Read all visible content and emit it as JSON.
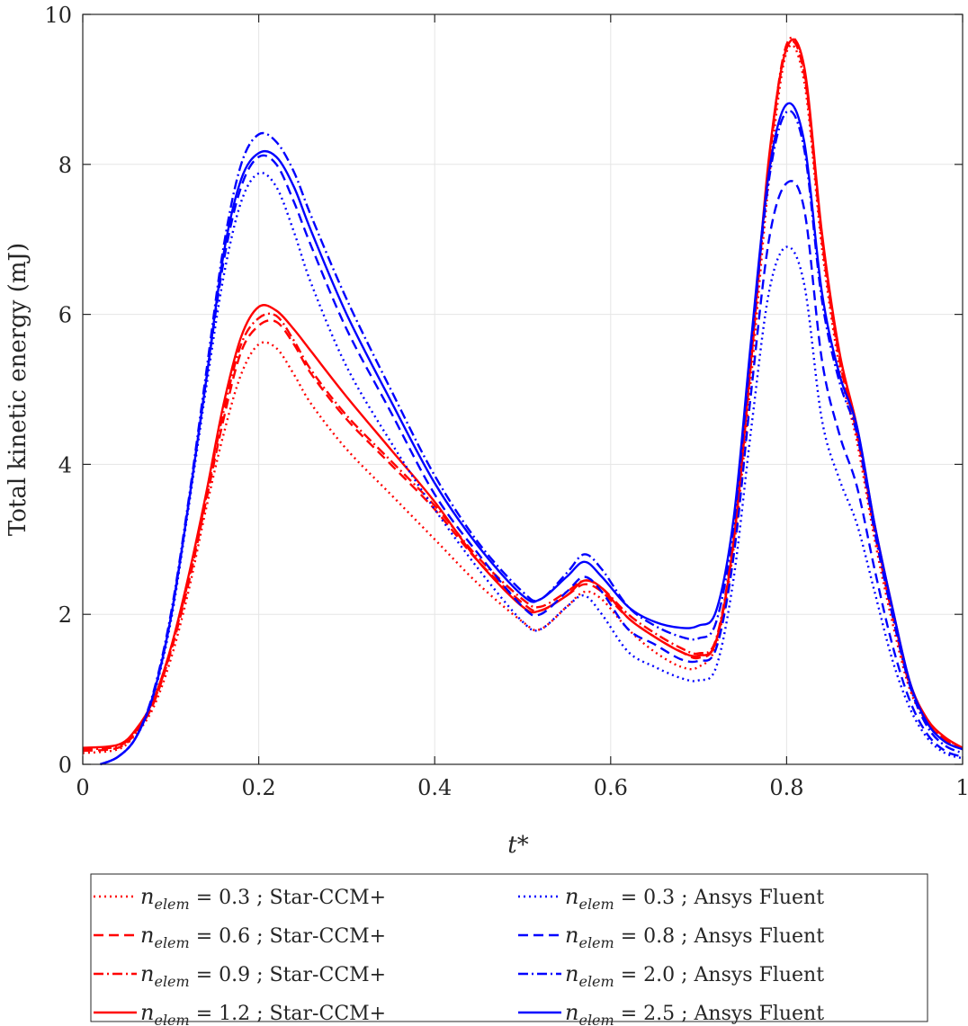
{
  "chart_data": {
    "type": "line",
    "title": "",
    "xlabel": "t*",
    "ylabel": "Total kinetic energy (mJ)",
    "xlim": [
      0,
      1
    ],
    "ylim": [
      0,
      10
    ],
    "xticks": [
      0,
      0.2,
      0.4,
      0.6,
      0.8,
      1
    ],
    "xtick_labels": [
      "0",
      "0.2",
      "0.4",
      "0.6",
      "0.8",
      "1"
    ],
    "yticks": [
      0,
      2,
      4,
      6,
      8,
      10
    ],
    "ytick_labels": [
      "0",
      "2",
      "4",
      "6",
      "8",
      "10"
    ],
    "grid": true,
    "legend_position": "below",
    "series": [
      {
        "name": "n_elem = 0.3 ; Star-CCM+",
        "label_main": "n",
        "label_sub": "elem",
        "label_rest": " = 0.3 ; Star-CCM+",
        "color": "#ff0000",
        "dash": "dotted",
        "x": [
          0.0,
          0.04,
          0.06,
          0.08,
          0.1,
          0.12,
          0.14,
          0.16,
          0.18,
          0.2,
          0.22,
          0.24,
          0.26,
          0.3,
          0.35,
          0.4,
          0.45,
          0.5,
          0.52,
          0.55,
          0.57,
          0.59,
          0.62,
          0.65,
          0.68,
          0.7,
          0.72,
          0.74,
          0.76,
          0.78,
          0.8,
          0.82,
          0.84,
          0.86,
          0.88,
          0.9,
          0.92,
          0.94,
          0.96,
          0.98,
          1.0
        ],
        "y": [
          0.15,
          0.2,
          0.4,
          0.75,
          1.4,
          2.3,
          3.4,
          4.4,
          5.2,
          5.6,
          5.55,
          5.2,
          4.8,
          4.2,
          3.6,
          3.0,
          2.4,
          1.9,
          1.8,
          2.1,
          2.3,
          2.2,
          1.8,
          1.5,
          1.3,
          1.3,
          1.6,
          2.9,
          5.2,
          7.8,
          9.5,
          9.1,
          6.9,
          5.3,
          4.3,
          3.0,
          1.9,
          1.0,
          0.55,
          0.32,
          0.2
        ]
      },
      {
        "name": "n_elem = 0.6 ; Star-CCM+",
        "label_main": "n",
        "label_sub": "elem",
        "label_rest": " = 0.6 ; Star-CCM+",
        "color": "#ff0000",
        "dash": "dashed",
        "x": [
          0.0,
          0.04,
          0.06,
          0.08,
          0.1,
          0.12,
          0.14,
          0.16,
          0.18,
          0.2,
          0.22,
          0.24,
          0.26,
          0.3,
          0.35,
          0.4,
          0.45,
          0.5,
          0.52,
          0.55,
          0.57,
          0.59,
          0.62,
          0.65,
          0.68,
          0.7,
          0.72,
          0.74,
          0.76,
          0.78,
          0.8,
          0.82,
          0.84,
          0.86,
          0.88,
          0.9,
          0.92,
          0.94,
          0.96,
          0.98,
          1.0
        ],
        "y": [
          0.18,
          0.22,
          0.42,
          0.8,
          1.5,
          2.4,
          3.5,
          4.6,
          5.5,
          5.85,
          5.9,
          5.6,
          5.2,
          4.6,
          4.0,
          3.4,
          2.7,
          2.15,
          2.05,
          2.25,
          2.4,
          2.3,
          1.95,
          1.7,
          1.5,
          1.42,
          1.65,
          3.0,
          5.4,
          8.0,
          9.55,
          9.2,
          7.0,
          5.4,
          4.4,
          3.1,
          2.0,
          1.05,
          0.55,
          0.33,
          0.2
        ]
      },
      {
        "name": "n_elem = 0.9 ; Star-CCM+",
        "label_main": "n",
        "label_sub": "elem",
        "label_rest": " = 0.9 ; Star-CCM+",
        "color": "#ff0000",
        "dash": "dashdot",
        "x": [
          0.0,
          0.04,
          0.06,
          0.08,
          0.1,
          0.12,
          0.14,
          0.16,
          0.18,
          0.2,
          0.22,
          0.24,
          0.26,
          0.3,
          0.35,
          0.4,
          0.45,
          0.5,
          0.52,
          0.55,
          0.57,
          0.59,
          0.62,
          0.65,
          0.68,
          0.7,
          0.72,
          0.74,
          0.76,
          0.78,
          0.8,
          0.82,
          0.84,
          0.86,
          0.88,
          0.9,
          0.92,
          0.94,
          0.96,
          0.98,
          1.0
        ],
        "y": [
          0.2,
          0.24,
          0.44,
          0.82,
          1.52,
          2.45,
          3.55,
          4.7,
          5.6,
          5.95,
          5.98,
          5.65,
          5.25,
          4.65,
          4.05,
          3.45,
          2.75,
          2.2,
          2.1,
          2.3,
          2.45,
          2.35,
          2.0,
          1.75,
          1.55,
          1.48,
          1.68,
          3.05,
          5.45,
          8.05,
          9.6,
          9.25,
          7.05,
          5.45,
          4.45,
          3.15,
          2.05,
          1.08,
          0.58,
          0.35,
          0.22
        ]
      },
      {
        "name": "n_elem = 1.2 ; Star-CCM+",
        "label_main": "n",
        "label_sub": "elem",
        "label_rest": " = 1.2 ; Star-CCM+",
        "color": "#ff0000",
        "dash": "solid",
        "x": [
          0.0,
          0.04,
          0.06,
          0.08,
          0.1,
          0.12,
          0.14,
          0.16,
          0.18,
          0.2,
          0.22,
          0.24,
          0.26,
          0.3,
          0.35,
          0.4,
          0.45,
          0.5,
          0.52,
          0.55,
          0.57,
          0.59,
          0.62,
          0.65,
          0.68,
          0.7,
          0.72,
          0.74,
          0.76,
          0.78,
          0.8,
          0.82,
          0.84,
          0.86,
          0.88,
          0.9,
          0.92,
          0.94,
          0.96,
          0.98,
          1.0
        ],
        "y": [
          0.22,
          0.26,
          0.46,
          0.85,
          1.55,
          2.5,
          3.6,
          4.8,
          5.7,
          6.1,
          6.05,
          5.8,
          5.5,
          4.9,
          4.2,
          3.5,
          2.7,
          2.1,
          2.05,
          2.25,
          2.45,
          2.35,
          1.95,
          1.7,
          1.5,
          1.45,
          1.65,
          3.0,
          5.45,
          8.1,
          9.55,
          9.3,
          7.1,
          5.5,
          4.5,
          3.2,
          2.1,
          1.1,
          0.6,
          0.36,
          0.22
        ]
      },
      {
        "name": "n_elem = 0.3 ; Ansys Fluent",
        "label_main": "n",
        "label_sub": "elem",
        "label_rest": " = 0.3 ; Ansys Fluent",
        "color": "#0000ff",
        "dash": "dotted",
        "x": [
          0.02,
          0.04,
          0.06,
          0.08,
          0.1,
          0.12,
          0.14,
          0.16,
          0.18,
          0.2,
          0.22,
          0.24,
          0.26,
          0.3,
          0.35,
          0.4,
          0.45,
          0.5,
          0.52,
          0.55,
          0.57,
          0.59,
          0.62,
          0.65,
          0.68,
          0.7,
          0.72,
          0.74,
          0.76,
          0.78,
          0.8,
          0.82,
          0.84,
          0.86,
          0.88,
          0.9,
          0.92,
          0.94,
          0.96,
          0.98,
          1.0
        ],
        "y": [
          0.0,
          0.1,
          0.35,
          0.9,
          1.9,
          3.4,
          5.0,
          6.5,
          7.5,
          7.88,
          7.7,
          7.1,
          6.4,
          5.3,
          4.3,
          3.4,
          2.6,
          1.9,
          1.8,
          2.1,
          2.25,
          2.0,
          1.5,
          1.3,
          1.15,
          1.12,
          1.3,
          2.5,
          4.5,
          6.3,
          6.9,
          6.4,
          4.6,
          3.8,
          3.2,
          2.3,
          1.4,
          0.75,
          0.35,
          0.15,
          0.08
        ]
      },
      {
        "name": "n_elem = 0.8 ; Ansys Fluent",
        "label_main": "n",
        "label_sub": "elem",
        "label_rest": " = 0.8 ; Ansys Fluent",
        "color": "#0000ff",
        "dash": "dashed",
        "x": [
          0.02,
          0.04,
          0.06,
          0.08,
          0.1,
          0.12,
          0.14,
          0.16,
          0.18,
          0.2,
          0.22,
          0.24,
          0.26,
          0.3,
          0.35,
          0.4,
          0.45,
          0.5,
          0.52,
          0.55,
          0.57,
          0.59,
          0.62,
          0.65,
          0.68,
          0.7,
          0.72,
          0.74,
          0.76,
          0.78,
          0.8,
          0.82,
          0.84,
          0.86,
          0.88,
          0.9,
          0.92,
          0.94,
          0.96,
          0.98,
          1.0
        ],
        "y": [
          0.0,
          0.1,
          0.35,
          0.92,
          1.95,
          3.45,
          5.1,
          6.7,
          7.7,
          8.1,
          8.0,
          7.5,
          6.9,
          5.8,
          4.7,
          3.6,
          2.8,
          2.1,
          2.0,
          2.3,
          2.5,
          2.3,
          1.8,
          1.6,
          1.4,
          1.38,
          1.55,
          2.8,
          5.0,
          7.0,
          7.75,
          7.4,
          5.4,
          4.4,
          3.7,
          2.6,
          1.6,
          0.85,
          0.4,
          0.18,
          0.1
        ]
      },
      {
        "name": "n_elem = 2.0 ; Ansys Fluent",
        "label_main": "n",
        "label_sub": "elem",
        "label_rest": " = 2.0 ; Ansys Fluent",
        "color": "#0000ff",
        "dash": "dashdot",
        "x": [
          0.02,
          0.04,
          0.06,
          0.08,
          0.1,
          0.12,
          0.14,
          0.16,
          0.18,
          0.2,
          0.22,
          0.24,
          0.26,
          0.3,
          0.35,
          0.4,
          0.45,
          0.5,
          0.52,
          0.55,
          0.57,
          0.59,
          0.62,
          0.65,
          0.68,
          0.7,
          0.72,
          0.74,
          0.76,
          0.78,
          0.8,
          0.82,
          0.84,
          0.86,
          0.88,
          0.9,
          0.92,
          0.94,
          0.96,
          0.98,
          1.0
        ],
        "y": [
          0.0,
          0.1,
          0.35,
          0.95,
          2.0,
          3.5,
          5.2,
          6.9,
          8.0,
          8.4,
          8.3,
          7.9,
          7.3,
          6.2,
          5.0,
          3.85,
          2.95,
          2.3,
          2.2,
          2.55,
          2.8,
          2.6,
          2.1,
          1.85,
          1.7,
          1.68,
          1.9,
          3.2,
          5.6,
          7.8,
          8.7,
          8.2,
          6.2,
          5.1,
          4.4,
          3.1,
          2.0,
          1.05,
          0.5,
          0.25,
          0.15
        ]
      },
      {
        "name": "n_elem = 2.5 ; Ansys Fluent",
        "label_main": "n",
        "label_sub": "elem",
        "label_rest": " = 2.5 ; Ansys Fluent",
        "color": "#0000ff",
        "dash": "solid",
        "x": [
          0.02,
          0.04,
          0.06,
          0.08,
          0.1,
          0.12,
          0.14,
          0.16,
          0.18,
          0.2,
          0.22,
          0.24,
          0.26,
          0.3,
          0.35,
          0.4,
          0.45,
          0.5,
          0.52,
          0.55,
          0.57,
          0.59,
          0.62,
          0.65,
          0.68,
          0.7,
          0.72,
          0.74,
          0.76,
          0.78,
          0.8,
          0.82,
          0.84,
          0.86,
          0.88,
          0.9,
          0.92,
          0.94,
          0.96,
          0.98,
          1.0
        ],
        "y": [
          0.0,
          0.1,
          0.35,
          0.92,
          1.95,
          3.45,
          5.1,
          6.8,
          7.8,
          8.15,
          8.1,
          7.7,
          7.1,
          6.0,
          4.85,
          3.75,
          2.9,
          2.25,
          2.2,
          2.5,
          2.7,
          2.5,
          2.1,
          1.9,
          1.82,
          1.85,
          2.05,
          3.3,
          5.7,
          7.9,
          8.8,
          8.3,
          6.3,
          5.2,
          4.5,
          3.2,
          2.1,
          1.1,
          0.55,
          0.3,
          0.2
        ]
      }
    ]
  }
}
